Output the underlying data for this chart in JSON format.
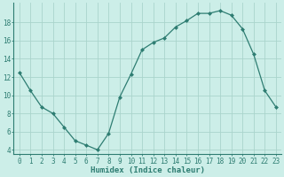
{
  "x": [
    0,
    1,
    2,
    3,
    4,
    5,
    6,
    7,
    8,
    9,
    10,
    11,
    12,
    13,
    14,
    15,
    16,
    17,
    18,
    19,
    20,
    21,
    22,
    23
  ],
  "y": [
    12.5,
    10.5,
    8.7,
    8.0,
    6.5,
    5.0,
    4.5,
    4.0,
    5.8,
    9.8,
    12.3,
    15.0,
    15.8,
    16.3,
    17.5,
    18.2,
    19.0,
    19.0,
    19.3,
    18.8,
    17.3,
    14.5,
    10.5,
    8.7
  ],
  "line_color": "#2e7d72",
  "marker": "D",
  "marker_size": 2.0,
  "bg_color": "#cceee8",
  "grid_color": "#aad4cc",
  "xlabel": "Humidex (Indice chaleur)",
  "ylim": [
    3.5,
    20.2
  ],
  "xlim": [
    -0.5,
    23.5
  ],
  "yticks": [
    4,
    6,
    8,
    10,
    12,
    14,
    16,
    18
  ],
  "xticks": [
    0,
    1,
    2,
    3,
    4,
    5,
    6,
    7,
    8,
    9,
    10,
    11,
    12,
    13,
    14,
    15,
    16,
    17,
    18,
    19,
    20,
    21,
    22,
    23
  ],
  "tick_fontsize": 5.5,
  "xlabel_fontsize": 6.5
}
